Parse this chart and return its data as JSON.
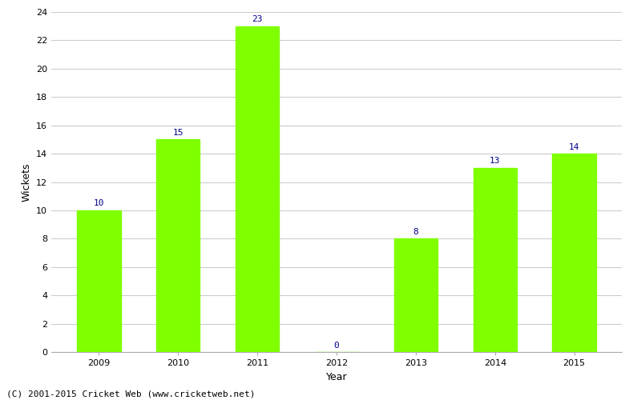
{
  "years": [
    "2009",
    "2010",
    "2011",
    "2012",
    "2013",
    "2014",
    "2015"
  ],
  "values": [
    10,
    15,
    23,
    0,
    8,
    13,
    14
  ],
  "bar_color": "#7fff00",
  "bar_edgecolor": "#7fff00",
  "label_color": "#00008b",
  "xlabel": "Year",
  "ylabel": "Wickets",
  "ylim": [
    0,
    24
  ],
  "yticks": [
    0,
    2,
    4,
    6,
    8,
    10,
    12,
    14,
    16,
    18,
    20,
    22,
    24
  ],
  "grid_color": "#cccccc",
  "background_color": "#ffffff",
  "footer": "(C) 2001-2015 Cricket Web (www.cricketweb.net)",
  "label_fontsize": 8,
  "axis_label_fontsize": 9,
  "tick_fontsize": 8,
  "footer_fontsize": 8,
  "bar_width": 0.55
}
